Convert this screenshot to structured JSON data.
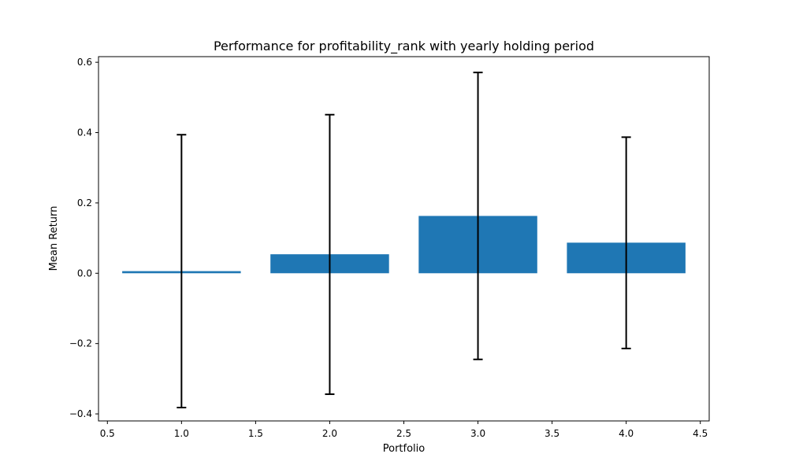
{
  "chart_data": {
    "type": "bar",
    "title": "Performance for profitability_rank with yearly holding period",
    "xlabel": "Portfolio",
    "ylabel": "Mean Return",
    "x": [
      1.0,
      2.0,
      3.0,
      4.0
    ],
    "values": [
      0.006,
      0.054,
      0.163,
      0.087
    ],
    "error_low": [
      -0.382,
      -0.344,
      -0.245,
      -0.214
    ],
    "error_high": [
      0.394,
      0.451,
      0.571,
      0.387
    ],
    "bar_width": 0.8,
    "xlim": [
      0.44,
      4.56
    ],
    "ylim": [
      -0.42,
      0.616
    ],
    "xticks": [
      0.5,
      1.0,
      1.5,
      2.0,
      2.5,
      3.0,
      3.5,
      4.0,
      4.5
    ],
    "xtick_labels": [
      "0.5",
      "1.0",
      "1.5",
      "2.0",
      "2.5",
      "3.0",
      "3.5",
      "4.0",
      "4.5"
    ],
    "yticks": [
      -0.4,
      -0.2,
      0.0,
      0.2,
      0.4,
      0.6
    ],
    "ytick_labels": [
      "−0.4",
      "−0.2",
      "0.0",
      "0.2",
      "0.4",
      "0.6"
    ],
    "grid": false,
    "colors": {
      "bar": "#1f77b4",
      "error_bar": "#000000",
      "axes": "#000000"
    }
  }
}
